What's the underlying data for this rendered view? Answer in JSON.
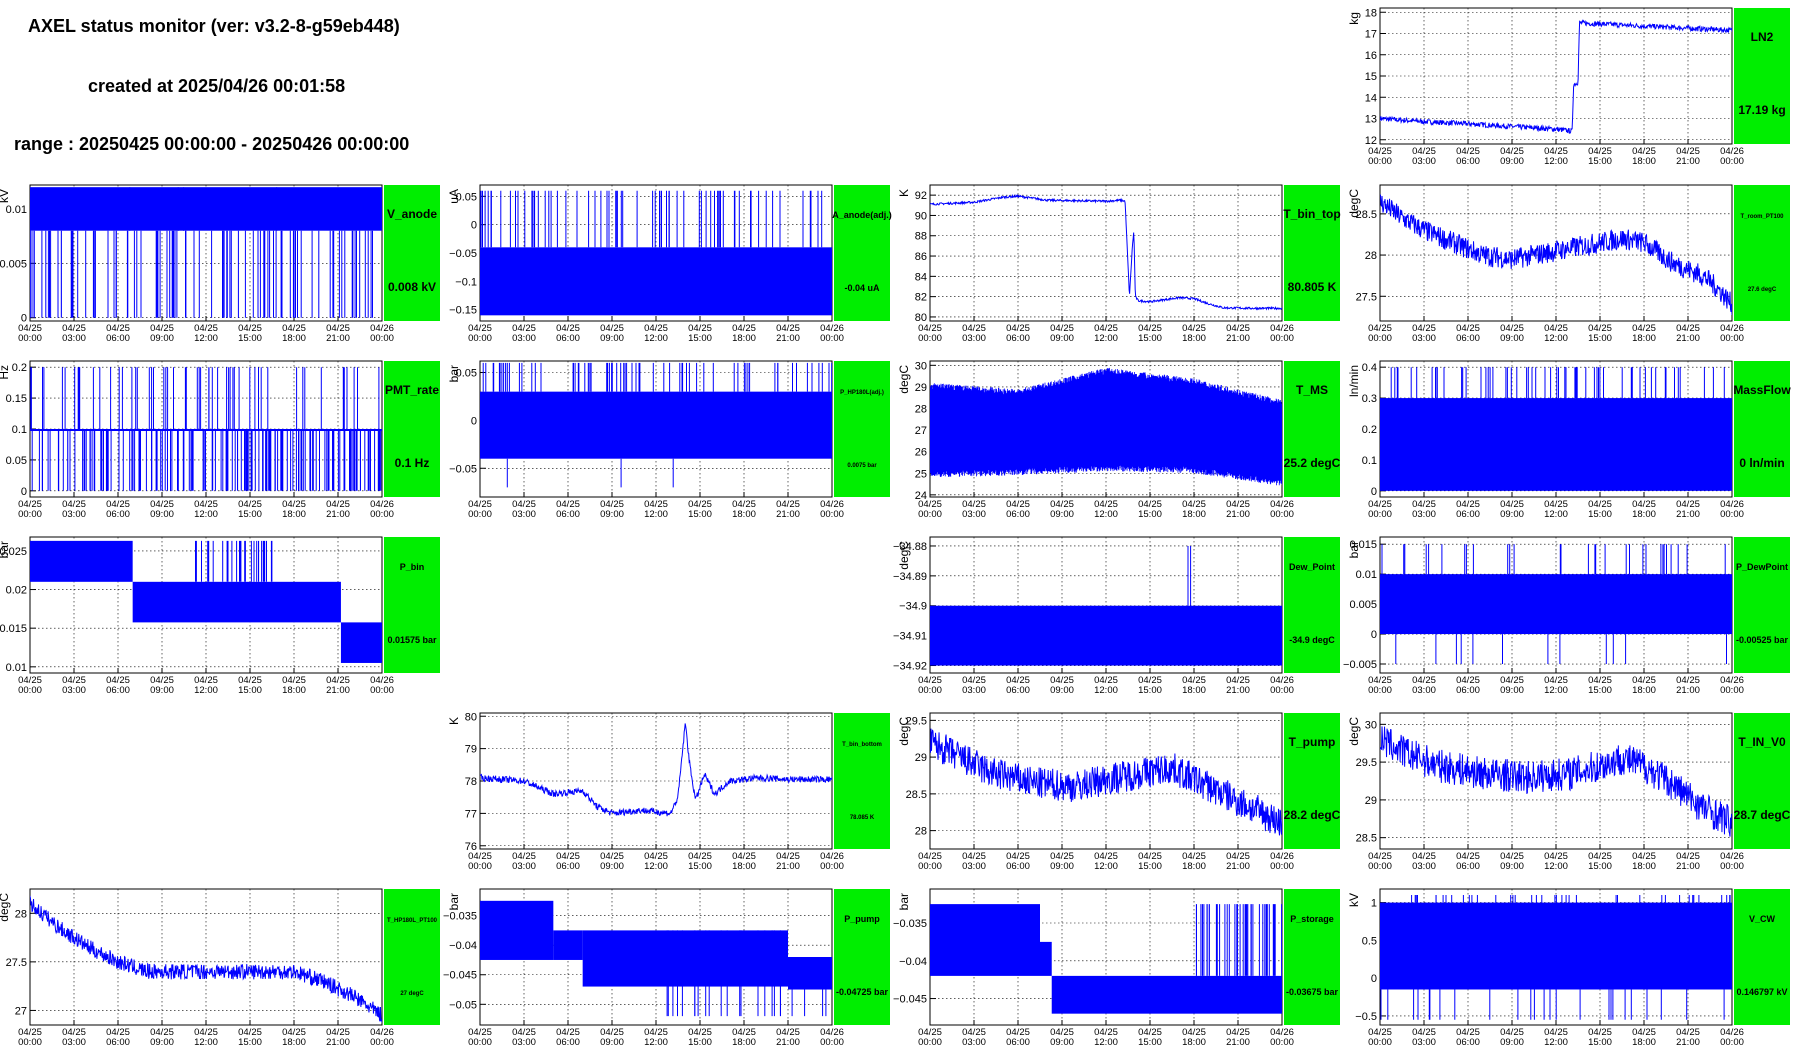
{
  "header": {
    "title": "AXEL status monitor (ver: v3.2-8-g59eb448)",
    "created": "created at 2025/04/26 00:01:58",
    "range": "range : 20250425 00:00:00 - 20250426 00:00:00"
  },
  "colors": {
    "series": "#0000ff",
    "status_ok": "#00ee00",
    "grid": "#000000",
    "background": "#ffffff"
  },
  "time_axis": {
    "ticks": [
      {
        "date": "04/25",
        "time": "00:00"
      },
      {
        "date": "04/25",
        "time": "03:00"
      },
      {
        "date": "04/25",
        "time": "06:00"
      },
      {
        "date": "04/25",
        "time": "09:00"
      },
      {
        "date": "04/25",
        "time": "12:00"
      },
      {
        "date": "04/25",
        "time": "15:00"
      },
      {
        "date": "04/25",
        "time": "18:00"
      },
      {
        "date": "04/25",
        "time": "21:00"
      },
      {
        "date": "04/26",
        "time": "00:00"
      }
    ]
  },
  "chart_data": [
    {
      "id": "LN2",
      "type": "line",
      "ylabel": "kg",
      "yticks": [
        12,
        13,
        14,
        15,
        16,
        17,
        18
      ],
      "ylim": [
        11.8,
        18.2
      ],
      "status": {
        "name": "LN2",
        "value": "17.19 kg",
        "size": "big"
      },
      "series": {
        "render": "line",
        "points": [
          [
            0,
            13.0
          ],
          [
            3,
            12.85
          ],
          [
            6,
            12.75
          ],
          [
            9,
            12.62
          ],
          [
            12,
            12.5
          ],
          [
            13.1,
            12.4
          ],
          [
            13.2,
            14.6
          ],
          [
            13.5,
            14.7
          ],
          [
            13.6,
            17.5
          ],
          [
            15,
            17.45
          ],
          [
            18,
            17.35
          ],
          [
            21,
            17.25
          ],
          [
            24,
            17.15
          ]
        ],
        "noise": 0.12
      }
    },
    {
      "id": "V_anode",
      "type": "line",
      "ylabel": "kV",
      "yticks": [
        0,
        0.005,
        0.01
      ],
      "yticklabels": [
        "0",
        "0.005",
        "0.01"
      ],
      "ylim": [
        -0.0003,
        0.0122
      ],
      "status": {
        "name": "V_anode",
        "value": "0.008 kV",
        "size": "big"
      },
      "series": {
        "render": "band",
        "lo": 0.008,
        "hi": 0.012,
        "drops_to": 0,
        "drops": 90,
        "spikes_to": 0.008,
        "spikes": 4
      }
    },
    {
      "id": "A_anode",
      "type": "line",
      "ylabel": "uA",
      "yticks": [
        -0.15,
        -0.1,
        -0.05,
        0,
        0.05
      ],
      "yticklabels": [
        "−0.15",
        "−0.1",
        "−0.05",
        "0",
        "0.05"
      ],
      "ylim": [
        -0.17,
        0.07
      ],
      "status": {
        "name": "A_anode(adj.)",
        "value": "-0.04 uA",
        "size": "small"
      },
      "series": {
        "render": "band",
        "lo": -0.16,
        "hi": -0.04,
        "spikes_to": 0.06,
        "spikes": 70
      }
    },
    {
      "id": "T_bin_top",
      "type": "line",
      "ylabel": "K",
      "yticks": [
        80,
        82,
        84,
        86,
        88,
        90,
        92
      ],
      "ylim": [
        79.6,
        93
      ],
      "status": {
        "name": "T_bin_top",
        "value": "80.805 K",
        "size": "big"
      },
      "series": {
        "render": "line",
        "points": [
          [
            0,
            91.1
          ],
          [
            3,
            91.3
          ],
          [
            5,
            91.8
          ],
          [
            6,
            91.9
          ],
          [
            8,
            91.5
          ],
          [
            12,
            91.4
          ],
          [
            13,
            91.5
          ],
          [
            13.3,
            91.4
          ],
          [
            13.6,
            82
          ],
          [
            13.8,
            87
          ],
          [
            13.9,
            88.5
          ],
          [
            14.0,
            82
          ],
          [
            14.2,
            81.6
          ],
          [
            15,
            81.5
          ],
          [
            17,
            81.9
          ],
          [
            18,
            81.8
          ],
          [
            19,
            81.3
          ],
          [
            20,
            80.9
          ],
          [
            22,
            80.85
          ],
          [
            24,
            80.85
          ]
        ],
        "noise": 0.1
      }
    },
    {
      "id": "T_room_PT100",
      "type": "line",
      "ylabel": "degC",
      "yticks": [
        27.5,
        28,
        28.5
      ],
      "ylim": [
        27.2,
        28.85
      ],
      "status": {
        "name": "T_room_PT100",
        "value": "27.6 degC",
        "size": "tiny"
      },
      "series": {
        "render": "line",
        "points": [
          [
            0,
            28.65
          ],
          [
            1.5,
            28.45
          ],
          [
            3,
            28.3
          ],
          [
            5,
            28.15
          ],
          [
            7,
            28.0
          ],
          [
            9,
            27.95
          ],
          [
            12,
            28.05
          ],
          [
            15,
            28.15
          ],
          [
            16.5,
            28.2
          ],
          [
            18,
            28.15
          ],
          [
            20,
            27.9
          ],
          [
            22,
            27.75
          ],
          [
            23,
            27.6
          ],
          [
            24,
            27.4
          ]
        ],
        "noise": 0.13
      }
    },
    {
      "id": "PMT_rate",
      "type": "line",
      "ylabel": "Hz",
      "yticks": [
        0,
        0.05,
        0.1,
        0.15,
        0.2
      ],
      "yticklabels": [
        "0",
        "0.05",
        "0.1",
        "0.15",
        "0.2"
      ],
      "ylim": [
        -0.01,
        0.21
      ],
      "status": {
        "name": "PMT_rate",
        "value": "0.1 Hz",
        "size": "big"
      },
      "series": {
        "render": "band",
        "lo": 0.1,
        "hi": 0.1,
        "drops_to": 0,
        "drops": 160,
        "spikes_to": 0.2,
        "spikes": 55
      }
    },
    {
      "id": "P_HP180L",
      "type": "line",
      "ylabel": "bar",
      "yticks": [
        -0.05,
        0,
        0.05
      ],
      "yticklabels": [
        "−0.05",
        "0",
        "0.05"
      ],
      "ylim": [
        -0.08,
        0.062
      ],
      "status": {
        "name": "P_HP180L(adj.)",
        "value": "0.0075 bar",
        "size": "tiny"
      },
      "series": {
        "render": "band",
        "lo": -0.04,
        "hi": 0.03,
        "spikes_to": 0.06,
        "spikes": 70,
        "drops_to": -0.07,
        "drops": 3
      }
    },
    {
      "id": "T_MS",
      "type": "line",
      "ylabel": "degC",
      "yticks": [
        24,
        25,
        26,
        27,
        28,
        29,
        30
      ],
      "ylim": [
        23.9,
        30.2
      ],
      "status": {
        "name": "T_MS",
        "value": "25.2 degC",
        "size": "big"
      },
      "series": {
        "render": "envelope",
        "lo_points": [
          [
            0,
            25.1
          ],
          [
            6,
            25.2
          ],
          [
            12,
            25.4
          ],
          [
            18,
            25.3
          ],
          [
            24,
            24.7
          ]
        ],
        "hi_points": [
          [
            0,
            28.9
          ],
          [
            6,
            28.6
          ],
          [
            9,
            29.1
          ],
          [
            12,
            29.6
          ],
          [
            18,
            29.1
          ],
          [
            24,
            28.1
          ]
        ],
        "noise": 0.3
      }
    },
    {
      "id": "MassFlow",
      "type": "line",
      "ylabel": "ln/min",
      "yticks": [
        0,
        0.1,
        0.2,
        0.3,
        0.4
      ],
      "yticklabels": [
        "0",
        "0.1",
        "0.2",
        "0.3",
        "0.4"
      ],
      "ylim": [
        -0.02,
        0.42
      ],
      "status": {
        "name": "MassFlow",
        "value": "0 ln/min",
        "size": "big"
      },
      "series": {
        "render": "band",
        "lo": 0,
        "hi": 0.3,
        "spikes_to": 0.4,
        "spikes": 60
      }
    },
    {
      "id": "P_bin",
      "type": "line",
      "ylabel": "bar",
      "yticks": [
        0.01,
        0.015,
        0.02,
        0.025
      ],
      "yticklabels": [
        "0.01",
        "0.015",
        "0.02",
        "0.025"
      ],
      "ylim": [
        0.0092,
        0.0268
      ],
      "status": {
        "name": "P_bin",
        "value": "0.01575 bar",
        "size": "small"
      },
      "series": {
        "render": "steps",
        "segments": [
          [
            0,
            7,
            0.021,
            0.0263
          ],
          [
            7,
            21.2,
            0.01575,
            0.021
          ],
          [
            21.2,
            24,
            0.0105,
            0.01575
          ]
        ],
        "spikes_to": 0.0263,
        "spikes": 30,
        "spike_range": [
          11,
          16.5
        ]
      }
    },
    {
      "id": "Dew_Point",
      "type": "line",
      "ylabel": "degC",
      "yticks": [
        -34.88,
        -34.89,
        -34.9,
        -34.91,
        -34.92
      ],
      "yticklabels": [
        "−34.88",
        "−34.89",
        "−34.9",
        "−34.91",
        "−34.92"
      ],
      "ylim": [
        -34.9225,
        -34.877
      ],
      "status": {
        "name": "Dew_Point",
        "value": "-34.9 degC",
        "size": "small"
      },
      "series": {
        "render": "band",
        "lo": -34.92,
        "hi": -34.9,
        "spikes_to": -34.88,
        "spikes": 2,
        "spike_range": [
          17,
          19
        ]
      }
    },
    {
      "id": "P_DewPoint",
      "type": "line",
      "ylabel": "bar",
      "yticks": [
        -0.005,
        0,
        0.005,
        0.01,
        0.015
      ],
      "yticklabels": [
        "−0.005",
        "0",
        "0.005",
        "0.01",
        "0.015"
      ],
      "ylim": [
        -0.0065,
        0.0162
      ],
      "status": {
        "name": "P_DewPoint",
        "value": "-0.00525 bar",
        "size": "small"
      },
      "series": {
        "render": "band",
        "lo": 0,
        "hi": 0.01,
        "spikes_to": 0.015,
        "spikes": 30,
        "drops_to": -0.005,
        "drops": 12
      }
    },
    {
      "id": "T_bin_bottom",
      "type": "line",
      "ylabel": "K",
      "yticks": [
        76,
        77,
        78,
        79,
        80
      ],
      "ylim": [
        75.9,
        80.1
      ],
      "status": {
        "name": "T_bin_bottom",
        "value": "78.085 K",
        "size": "tiny"
      },
      "series": {
        "render": "line",
        "points": [
          [
            0,
            78.1
          ],
          [
            3,
            78.0
          ],
          [
            5,
            77.6
          ],
          [
            7,
            77.7
          ],
          [
            8,
            77.2
          ],
          [
            9,
            77.0
          ],
          [
            11,
            77.1
          ],
          [
            13,
            77.0
          ],
          [
            13.5,
            77.5
          ],
          [
            14,
            79.8
          ],
          [
            14.3,
            78.5
          ],
          [
            14.7,
            77.4
          ],
          [
            15.3,
            78.2
          ],
          [
            16,
            77.6
          ],
          [
            17,
            78.0
          ],
          [
            19,
            78.1
          ],
          [
            21,
            78.05
          ],
          [
            24,
            78.05
          ]
        ],
        "noise": 0.1
      }
    },
    {
      "id": "T_pump",
      "type": "line",
      "ylabel": "degC",
      "yticks": [
        28,
        28.5,
        29,
        29.5
      ],
      "ylim": [
        27.75,
        29.6
      ],
      "status": {
        "name": "T_pump",
        "value": "28.2 degC",
        "size": "big"
      },
      "series": {
        "render": "line",
        "points": [
          [
            0,
            29.2
          ],
          [
            2,
            29.0
          ],
          [
            4,
            28.8
          ],
          [
            7,
            28.65
          ],
          [
            10,
            28.6
          ],
          [
            12,
            28.7
          ],
          [
            15,
            28.8
          ],
          [
            16.5,
            28.85
          ],
          [
            18,
            28.7
          ],
          [
            20,
            28.5
          ],
          [
            22,
            28.3
          ],
          [
            24,
            28.1
          ]
        ],
        "noise": 0.22
      }
    },
    {
      "id": "T_IN_V0",
      "type": "line",
      "ylabel": "degC",
      "yticks": [
        28.5,
        29,
        29.5,
        30
      ],
      "ylim": [
        28.35,
        30.15
      ],
      "status": {
        "name": "T_IN_V0",
        "value": "28.7 degC",
        "size": "big"
      },
      "series": {
        "render": "line",
        "points": [
          [
            0,
            29.8
          ],
          [
            2,
            29.6
          ],
          [
            4,
            29.45
          ],
          [
            7,
            29.35
          ],
          [
            10,
            29.3
          ],
          [
            13,
            29.35
          ],
          [
            15,
            29.45
          ],
          [
            16.5,
            29.55
          ],
          [
            18,
            29.45
          ],
          [
            20,
            29.2
          ],
          [
            22,
            28.9
          ],
          [
            24,
            28.7
          ]
        ],
        "noise": 0.22
      }
    },
    {
      "id": "T_HP180L_PT100",
      "type": "line",
      "ylabel": "degC",
      "yticks": [
        27,
        27.5,
        28
      ],
      "ylim": [
        26.85,
        28.25
      ],
      "status": {
        "name": "T_HP180L_PT100",
        "value": "27 degC",
        "size": "tiny"
      },
      "series": {
        "render": "line",
        "points": [
          [
            0,
            28.1
          ],
          [
            2,
            27.85
          ],
          [
            4,
            27.65
          ],
          [
            6,
            27.5
          ],
          [
            8,
            27.4
          ],
          [
            12,
            27.4
          ],
          [
            16,
            27.4
          ],
          [
            18,
            27.4
          ],
          [
            20,
            27.3
          ],
          [
            22,
            27.15
          ],
          [
            24,
            26.95
          ]
        ],
        "noise": 0.08
      }
    },
    {
      "id": "P_pump",
      "type": "line",
      "ylabel": "bar",
      "yticks": [
        -0.035,
        -0.04,
        -0.045,
        -0.05
      ],
      "yticklabels": [
        "−0.035",
        "−0.04",
        "−0.045",
        "−0.05"
      ],
      "ylim": [
        -0.0535,
        -0.0305
      ],
      "status": {
        "name": "P_pump",
        "value": "-0.04725 bar",
        "size": "small"
      },
      "series": {
        "render": "steps",
        "segments": [
          [
            0,
            5,
            -0.0425,
            -0.0325
          ],
          [
            5,
            7,
            -0.0425,
            -0.0375
          ],
          [
            7,
            21,
            -0.047,
            -0.0375
          ],
          [
            21,
            24,
            -0.0475,
            -0.042
          ]
        ],
        "spikes_to": -0.052,
        "spikes": 25,
        "spike_range": [
          12,
          24
        ]
      }
    },
    {
      "id": "P_storage",
      "type": "line",
      "ylabel": "bar",
      "yticks": [
        -0.035,
        -0.04,
        -0.045
      ],
      "yticklabels": [
        "−0.035",
        "−0.04",
        "−0.045"
      ],
      "ylim": [
        -0.0485,
        -0.0305
      ],
      "status": {
        "name": "P_storage",
        "value": "-0.03675 bar",
        "size": "small"
      },
      "series": {
        "render": "steps",
        "segments": [
          [
            0,
            7.5,
            -0.042,
            -0.0325
          ],
          [
            7.5,
            8.3,
            -0.042,
            -0.0375
          ],
          [
            8.3,
            24,
            -0.047,
            -0.042
          ]
        ],
        "spikes_to": -0.0325,
        "spikes": 40,
        "spike_range": [
          18,
          24
        ]
      }
    },
    {
      "id": "V_CW",
      "type": "line",
      "ylabel": "kV",
      "yticks": [
        -0.5,
        0,
        0.5,
        1
      ],
      "yticklabels": [
        "−0.5",
        "0",
        "0.5",
        "1"
      ],
      "ylim": [
        -0.62,
        1.18
      ],
      "status": {
        "name": "V_CW",
        "value": "0.146797 kV",
        "size": "small"
      },
      "series": {
        "render": "band",
        "lo": -0.15,
        "hi": 1.0,
        "spikes_to": 1.1,
        "spikes": 40,
        "drops_to": -0.55,
        "drops": 25
      }
    }
  ]
}
